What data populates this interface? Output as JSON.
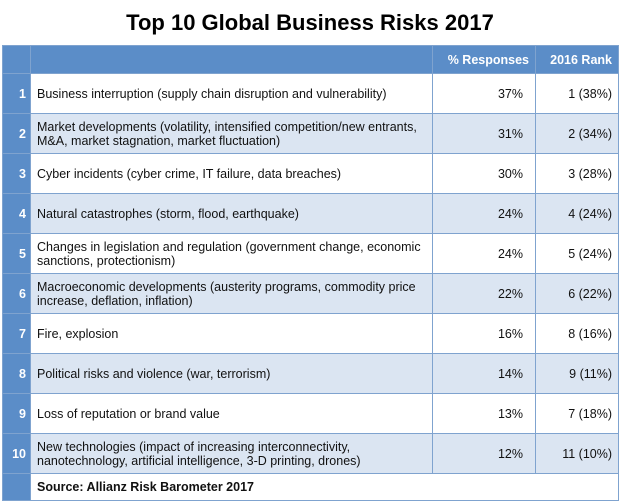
{
  "title": "Top 10 Global Business Risks 2017",
  "table": {
    "header": [
      "% Responses",
      "2016 Rank"
    ],
    "rows": [
      [
        "1",
        "Business interruption (supply chain disruption and vulnerability)",
        "37%",
        "1 (38%)"
      ],
      [
        "2",
        "Market developments (volatility, intensified competition/new entrants, M&A, market stagnation, market fluctuation)",
        "31%",
        "2 (34%)"
      ],
      [
        "3",
        "Cyber incidents (cyber crime, IT failure, data breaches)",
        "30%",
        "3 (28%)"
      ],
      [
        "4",
        "Natural catastrophes (storm, flood, earthquake)",
        "24%",
        "4 (24%)"
      ],
      [
        "5",
        "Changes in legislation and regulation (government change, economic sanctions, protectionism)",
        "24%",
        "5 (24%)"
      ],
      [
        "6",
        "Macroeconomic developments (austerity programs, commodity price increase, deflation, inflation)",
        "22%",
        "6 (22%)"
      ],
      [
        "7",
        "Fire, explosion",
        "16%",
        "8 (16%)"
      ],
      [
        "8",
        "Political risks and violence (war, terrorism)",
        "14%",
        "9 (11%)"
      ],
      [
        "9",
        "Loss of reputation or brand value",
        "13%",
        "7 (18%)"
      ],
      [
        "10",
        "New technologies (impact of increasing interconnectivity, nanotechnology, artificial intelligence, 3-D printing, drones)",
        "12%",
        "11 (10%)"
      ]
    ],
    "source": "Source: Allianz Risk Barometer 2017"
  }
}
